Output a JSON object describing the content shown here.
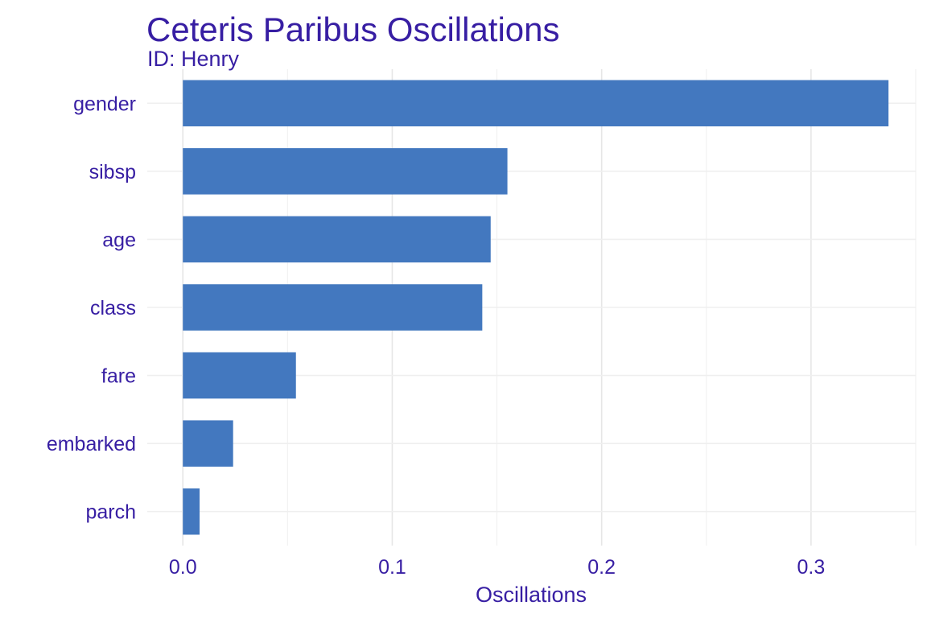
{
  "colors": {
    "text": "#371ea3",
    "bar": "#4378bf",
    "grid": "#e6e6e6",
    "background": "#ffffff"
  },
  "chart_data": {
    "type": "bar",
    "orientation": "horizontal",
    "title": "Ceteris Paribus Oscillations",
    "subtitle": "ID: Henry",
    "xlabel": "Oscillations",
    "ylabel": "",
    "categories": [
      "gender",
      "sibsp",
      "age",
      "class",
      "fare",
      "embarked",
      "parch"
    ],
    "values": [
      0.337,
      0.155,
      0.147,
      0.143,
      0.054,
      0.024,
      0.008
    ],
    "xlim": [
      -0.017,
      0.35
    ],
    "xticks": [
      0.0,
      0.1,
      0.2,
      0.3
    ],
    "xtick_labels": [
      "0.0",
      "0.1",
      "0.2",
      "0.3"
    ],
    "grid": true,
    "legend": "none"
  }
}
